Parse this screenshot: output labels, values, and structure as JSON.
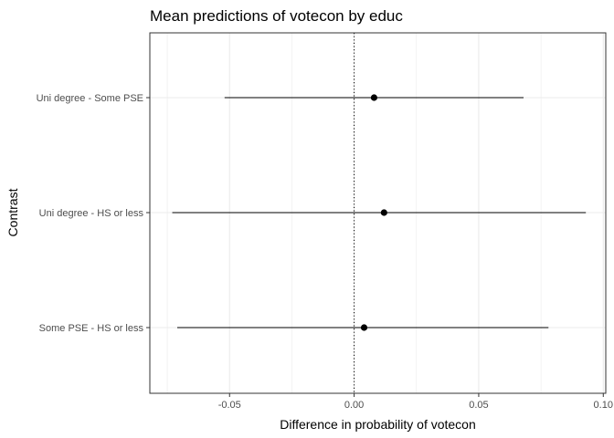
{
  "chart_data": {
    "type": "dot-and-whisker",
    "title": "Mean predictions of votecon by educ",
    "xlabel": "Difference in probability of votecon",
    "ylabel": "Contrast",
    "xlim": [
      -0.082,
      0.101
    ],
    "xticks": [
      -0.05,
      0.0,
      0.05,
      0.1
    ],
    "xtick_labels": [
      "-0.05",
      "0.00",
      "0.05",
      "0.10"
    ],
    "categories": [
      "Uni degree - Some PSE",
      "Uni degree - HS or less",
      "Some PSE - HS or less"
    ],
    "estimates": [
      0.008,
      0.012,
      0.004
    ],
    "conf_low": [
      -0.052,
      -0.073,
      -0.071
    ],
    "conf_high": [
      0.068,
      0.093,
      0.078
    ],
    "reference_line": 0,
    "grid": true,
    "colors": {
      "panel_border": "#333333",
      "grid": "#ebebeb",
      "marks": "#000000"
    }
  }
}
